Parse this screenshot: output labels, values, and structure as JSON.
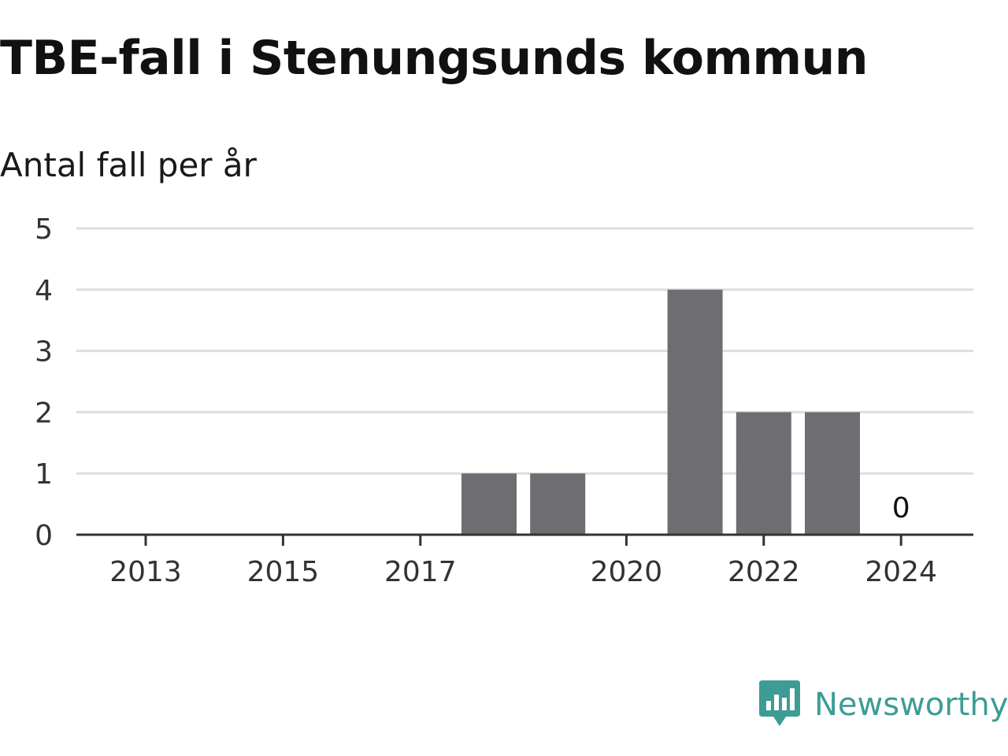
{
  "header": {
    "title": "TBE-fall i Stenungsunds kommun",
    "subtitle": "Antal fall per år"
  },
  "brand": {
    "name": "Newsworthy",
    "icon": "newsworthy-logo-icon",
    "color": "#3d9c96"
  },
  "colors": {
    "bar": "#6e6d72",
    "grid": "#dedede",
    "axis": "#333333"
  },
  "chart_data": {
    "type": "bar",
    "title": "TBE-fall i Stenungsunds kommun",
    "subtitle": "Antal fall per år",
    "xlabel": "",
    "ylabel": "",
    "categories": [
      "2013",
      "2014",
      "2015",
      "2016",
      "2017",
      "2018",
      "2019",
      "2020",
      "2021",
      "2022",
      "2023",
      "2024"
    ],
    "values": [
      0,
      0,
      0,
      0,
      0,
      1,
      1,
      0,
      4,
      2,
      2,
      0
    ],
    "x_tick_labels": [
      "2013",
      "2015",
      "2017",
      "2020",
      "2022",
      "2024"
    ],
    "y_ticks": [
      0,
      1,
      2,
      3,
      4,
      5
    ],
    "ylim": [
      0,
      5
    ],
    "grid": true,
    "data_labels": [
      {
        "category": "2024",
        "text": "0"
      }
    ]
  }
}
